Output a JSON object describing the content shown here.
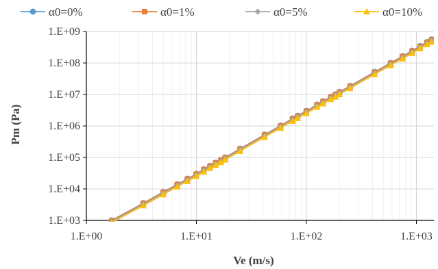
{
  "chart_data": {
    "type": "line",
    "title": "",
    "xlabel": "Ve (m/s)",
    "ylabel": "Pm (Pa)",
    "x_scale": "log",
    "y_scale": "log",
    "xlim": [
      1,
      1500
    ],
    "ylim": [
      1000,
      1000000000
    ],
    "x_ticks": [
      {
        "value": 1,
        "label": "1.E+00"
      },
      {
        "value": 10,
        "label": "1.E+01"
      },
      {
        "value": 100,
        "label": "1.E+02"
      },
      {
        "value": 1000,
        "label": "1.E+03"
      }
    ],
    "y_ticks": [
      {
        "value": 1000,
        "label": "1.E+03"
      },
      {
        "value": 10000,
        "label": "1.E+04"
      },
      {
        "value": 100000,
        "label": "1.E+05"
      },
      {
        "value": 1000000,
        "label": "1.E+06"
      },
      {
        "value": 10000000,
        "label": "1.E+07"
      },
      {
        "value": 100000000,
        "label": "1.E+08"
      },
      {
        "value": 1000000000,
        "label": "1.E+09"
      }
    ],
    "grid": true,
    "legend_position": "top",
    "series": [
      {
        "name": "α0=0%",
        "color": "#5B9BD5",
        "marker": "circle",
        "x": [
          1.7,
          3.3,
          5,
          6.7,
          8.3,
          10,
          11.7,
          13.3,
          15,
          16.7,
          18.3,
          25,
          41.7,
          58.3,
          75,
          83.3,
          100,
          125,
          141.7,
          166.7,
          183.3,
          200,
          250,
          416.7,
          583.3,
          750,
          916.7,
          1083,
          1250,
          1375
        ],
        "values": [
          1000,
          3550,
          8000,
          14000,
          21000,
          30000,
          42000,
          54000,
          68000,
          83000,
          100000,
          190000,
          530000,
          1030000,
          1720000,
          2100000,
          3000000,
          4750000,
          6100000,
          8400000,
          10000000,
          12000000,
          18700000,
          52000000,
          100000000,
          165000000,
          245000000,
          345000000,
          460000000,
          560000000
        ]
      },
      {
        "name": "α0=1%",
        "color": "#ED7D31",
        "marker": "square",
        "x": [
          1.7,
          3.3,
          5,
          6.7,
          8.3,
          10,
          11.7,
          13.3,
          15,
          16.7,
          18.3,
          25,
          41.7,
          58.3,
          75,
          83.3,
          100,
          125,
          141.7,
          166.7,
          183.3,
          200,
          250,
          416.7,
          583.3,
          750,
          916.7,
          1083,
          1250,
          1375
        ],
        "values": [
          980,
          3450,
          7800,
          13700,
          20500,
          29500,
          41000,
          53000,
          66500,
          81000,
          98000,
          185000,
          515000,
          1000000,
          1680000,
          2050000,
          2920000,
          4620000,
          5950000,
          8200000,
          9800000,
          11700000,
          18300000,
          50800000,
          98000000,
          160000000,
          238000000,
          336000000,
          450000000,
          545000000
        ]
      },
      {
        "name": "α0=5%",
        "color": "#A5A5A5",
        "marker": "diamond",
        "x": [
          1.7,
          3.3,
          5,
          6.7,
          8.3,
          10,
          11.7,
          13.3,
          15,
          16.7,
          18.3,
          25,
          41.7,
          58.3,
          75,
          83.3,
          100,
          125,
          141.7,
          166.7,
          183.3,
          200,
          250,
          416.7,
          583.3,
          750,
          916.7,
          1083,
          1250,
          1375
        ],
        "values": [
          930,
          3250,
          7300,
          12900,
          19300,
          27800,
          38500,
          50000,
          62500,
          76500,
          92000,
          175000,
          485000,
          940000,
          1580000,
          1930000,
          2750000,
          4350000,
          5600000,
          7700000,
          9200000,
          11000000,
          17200000,
          47800000,
          92000000,
          150000000,
          224000000,
          316000000,
          423000000,
          512000000
        ]
      },
      {
        "name": "α0=10%",
        "color": "#FFC000",
        "marker": "triangle",
        "x": [
          1.7,
          3.3,
          5,
          6.7,
          8.3,
          10,
          11.7,
          13.3,
          15,
          16.7,
          18.3,
          25,
          41.7,
          58.3,
          75,
          83.3,
          100,
          125,
          141.7,
          166.7,
          183.3,
          200,
          250,
          416.7,
          583.3,
          750,
          916.7,
          1083,
          1250,
          1375
        ],
        "values": [
          850,
          2950,
          6600,
          11700,
          17500,
          25200,
          35000,
          45500,
          57000,
          69500,
          83500,
          158000,
          440000,
          855000,
          1430000,
          1750000,
          2500000,
          3950000,
          5100000,
          7000000,
          8350000,
          10000000,
          15600000,
          43500000,
          84000000,
          137000000,
          204000000,
          288000000,
          385000000,
          466000000
        ]
      }
    ]
  }
}
